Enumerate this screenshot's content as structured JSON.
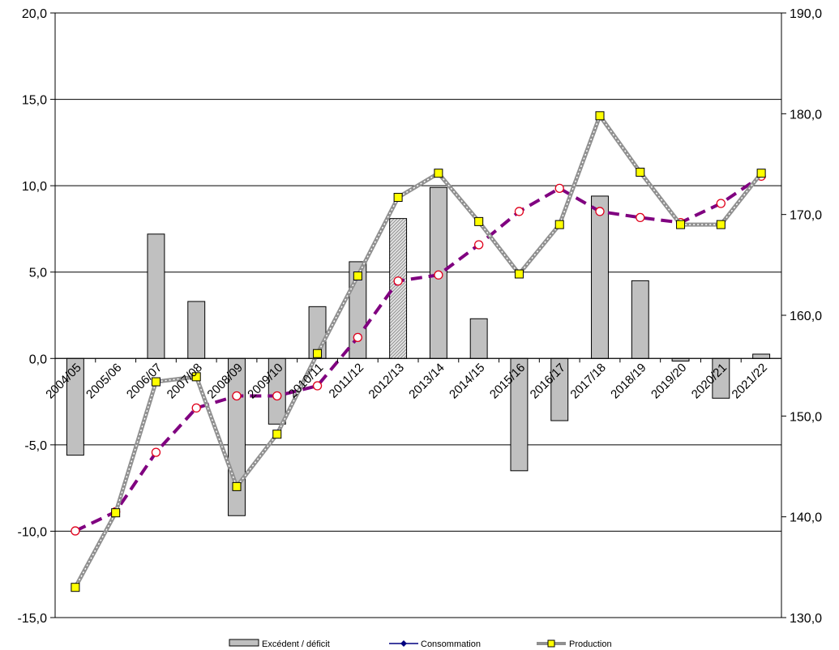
{
  "chart_data": {
    "type": "bar+line",
    "title": "",
    "categories": [
      "2004/05",
      "2005/06",
      "2006/07",
      "2007/08",
      "2008/09",
      "2009/10",
      "2010/11",
      "2011/12",
      "2012/13",
      "2013/14",
      "2014/15",
      "2015/16",
      "2016/17",
      "2017/18",
      "2018/19",
      "2019/20",
      "2020/21",
      "2021/22"
    ],
    "left_axis": {
      "min": -15,
      "max": 20,
      "step": 5,
      "tick_labels": [
        "-15,0",
        "-10,0",
        "-5,0",
        "0,0",
        "5,0",
        "10,0",
        "15,0",
        "20,0"
      ]
    },
    "right_axis": {
      "min": 130,
      "max": 190,
      "step": 10,
      "tick_labels": [
        "130,0",
        "140,0",
        "150,0",
        "160,0",
        "170,0",
        "180,0",
        "190,0"
      ]
    },
    "grid": true,
    "legend_position": "bottom",
    "series": [
      {
        "name": "Excédent / déficit",
        "type": "bar",
        "axis": "left",
        "color": "#c0c0c0",
        "values": [
          -5.6,
          0,
          7.2,
          3.3,
          -9.1,
          -3.8,
          3.0,
          5.6,
          8.1,
          9.9,
          2.3,
          -6.5,
          -3.6,
          9.4,
          4.5,
          -0.15,
          -2.3,
          0.25
        ],
        "hatched_index": 8
      },
      {
        "name": "Consommation",
        "type": "line",
        "axis": "right",
        "color": "#800080",
        "values": [
          138.6,
          140.5,
          146.4,
          150.8,
          152.0,
          152.0,
          153.0,
          157.8,
          163.4,
          164.0,
          167.0,
          170.3,
          172.6,
          170.3,
          169.7,
          169.2,
          171.1,
          173.8
        ]
      },
      {
        "name": "Production",
        "type": "line",
        "axis": "right",
        "color": "#808080",
        "marker_color": "#ffff00",
        "values": [
          133.0,
          140.4,
          153.4,
          153.9,
          143.0,
          148.2,
          156.2,
          163.9,
          171.7,
          174.1,
          169.3,
          164.1,
          169.0,
          179.8,
          174.2,
          169.0,
          169.0,
          174.1
        ]
      }
    ]
  }
}
